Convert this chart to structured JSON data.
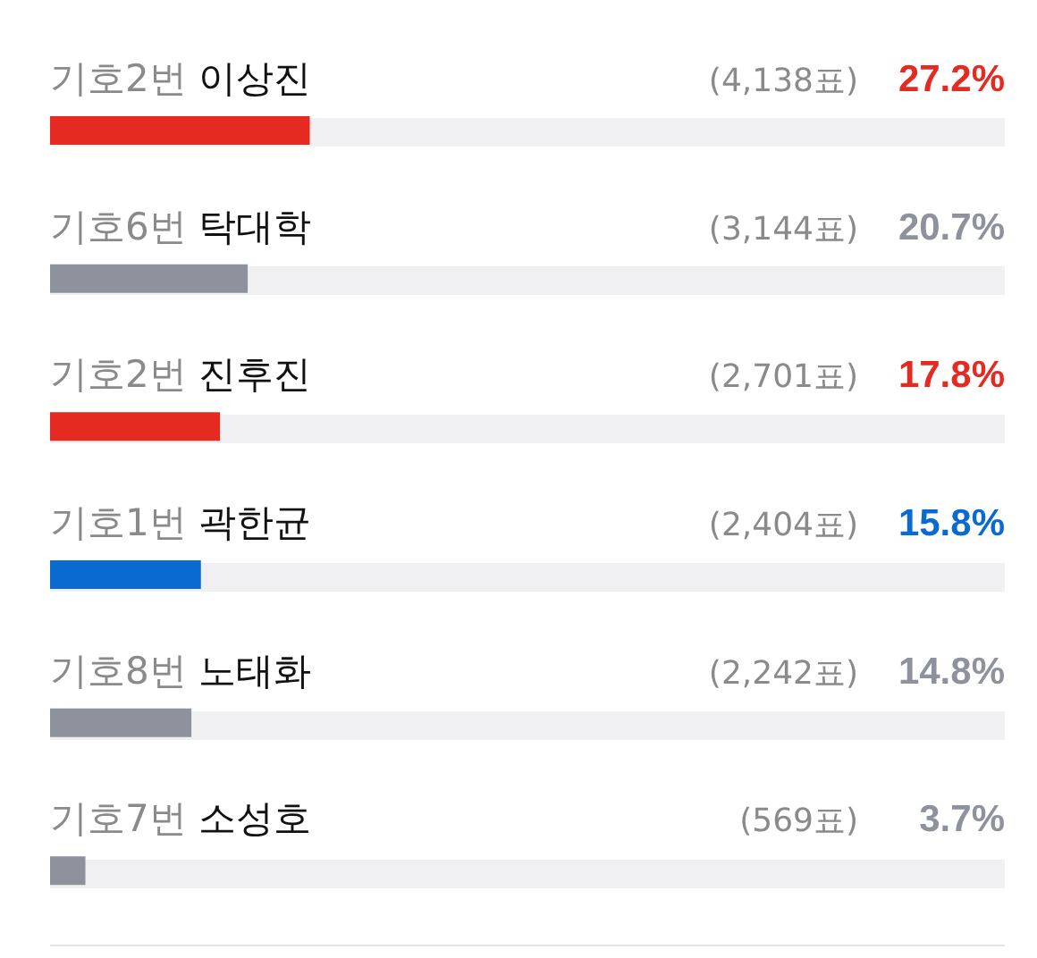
{
  "chart_data": {
    "type": "bar",
    "orientation": "horizontal",
    "tick_labels": false,
    "categories": [
      "기호2번 이상진",
      "기호6번 탁대학",
      "기호2번 진후진",
      "기호1번 곽한균",
      "기호8번 노태화",
      "기호7번 소성호"
    ],
    "values": [
      27.2,
      20.7,
      17.8,
      15.8,
      14.8,
      3.7
    ],
    "colors": [
      "#e52a22",
      "#8d929c",
      "#e52a22",
      "#0a6ad0",
      "#8d929c",
      "#8d929c"
    ],
    "value_labels": [
      "27.2%",
      "20.7%",
      "17.8%",
      "15.8%",
      "14.8%",
      "3.7%"
    ],
    "annotations": [
      "(4,138표)",
      "(3,144표)",
      "(2,701표)",
      "(2,404표)",
      "(2,242표)",
      "(569표)"
    ],
    "xlim": [
      0,
      100
    ]
  }
}
